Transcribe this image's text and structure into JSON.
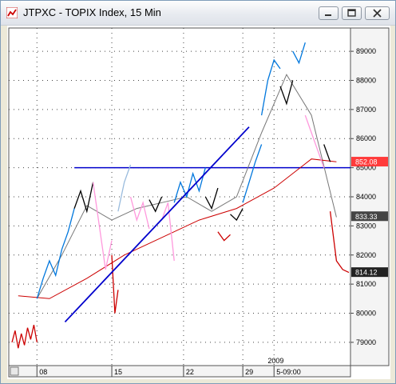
{
  "window": {
    "title": "JTPXC - TOPIX Index, 15 Min",
    "icon": "chart-app-icon",
    "controls": [
      "minimize-icon",
      "maximize-icon",
      "close-icon"
    ]
  },
  "chart_data": {
    "type": "line",
    "title": "JTPXC - TOPIX Index, 15 Min",
    "xlabel": "",
    "ylabel": "",
    "x_ticks": [
      "08",
      "15",
      "22",
      "29",
      "5-09:00"
    ],
    "x_year_label": "2009",
    "y_ticks": [
      790,
      800,
      810,
      820,
      830,
      840,
      850,
      860,
      870,
      880,
      890
    ],
    "ylim": [
      782,
      898
    ],
    "price_labels": [
      {
        "value": 852.08,
        "text": "852.08",
        "color": "#ff3b3b"
      },
      {
        "value": 833.33,
        "text": "833.33",
        "color": "#444444"
      },
      {
        "value": 814.12,
        "text": "814.12",
        "color": "#222222"
      }
    ],
    "horizontal_line": {
      "value": 850,
      "color": "#0000cc"
    },
    "trendline": {
      "from": [
        8.5,
        797
      ],
      "to": [
        38,
        864
      ],
      "color": "#0000cc"
    },
    "grid": "dotted",
    "series": [
      {
        "color": "#cc0000",
        "x": [
          0,
          0.5,
          1,
          1.5,
          2,
          2.5,
          3,
          3.5,
          4
        ],
        "values": [
          790,
          794,
          788,
          793,
          789,
          795,
          791,
          796,
          790
        ]
      },
      {
        "color": "#0077dd",
        "x": [
          4,
          5,
          6,
          7,
          8,
          9,
          10
        ],
        "values": [
          805,
          812,
          818,
          813,
          822,
          828,
          836
        ]
      },
      {
        "color": "#000000",
        "x": [
          10,
          11,
          12,
          13
        ],
        "values": [
          836,
          842,
          835,
          845
        ]
      },
      {
        "color": "#ff99dd",
        "x": [
          13,
          14,
          15,
          16
        ],
        "values": [
          845,
          830,
          815,
          825
        ]
      },
      {
        "color": "#cc0000",
        "x": [
          16,
          16.5,
          17
        ],
        "values": [
          820,
          800,
          808
        ]
      },
      {
        "color": "#99bbdd",
        "x": [
          17,
          18,
          19
        ],
        "values": [
          835,
          845,
          851
        ]
      },
      {
        "color": "#ff99dd",
        "x": [
          19,
          20,
          21,
          22
        ],
        "values": [
          840,
          832,
          838,
          829
        ]
      },
      {
        "color": "#000000",
        "x": [
          22,
          23,
          24
        ],
        "values": [
          839,
          835,
          840
        ]
      },
      {
        "color": "#ff99dd",
        "x": [
          24,
          25,
          26
        ],
        "values": [
          832,
          838,
          818
        ]
      },
      {
        "color": "#0077dd",
        "x": [
          26,
          27,
          28,
          29,
          30,
          31
        ],
        "values": [
          838,
          845,
          840,
          848,
          842,
          850
        ]
      },
      {
        "color": "#000000",
        "x": [
          31,
          32,
          33
        ],
        "values": [
          840,
          836,
          843
        ]
      },
      {
        "color": "#cc0000",
        "x": [
          33,
          34,
          35
        ],
        "values": [
          828,
          825,
          827
        ]
      },
      {
        "color": "#000000",
        "x": [
          35,
          36,
          37
        ],
        "values": [
          834,
          832,
          836
        ]
      },
      {
        "color": "#0077dd",
        "x": [
          37,
          38,
          39,
          40
        ],
        "values": [
          838,
          845,
          852,
          858
        ]
      },
      {
        "color": "#0077dd",
        "x": [
          40,
          41,
          42,
          43
        ],
        "values": [
          868,
          880,
          887,
          884
        ]
      },
      {
        "color": "#000000",
        "x": [
          43,
          44,
          45
        ],
        "values": [
          878,
          872,
          880
        ]
      },
      {
        "color": "#0077dd",
        "x": [
          45,
          46,
          47
        ],
        "values": [
          890,
          886,
          893
        ]
      },
      {
        "color": "#ff99dd",
        "x": [
          47,
          48,
          49,
          50
        ],
        "values": [
          868,
          862,
          856,
          850
        ]
      },
      {
        "color": "#000000",
        "x": [
          50,
          51
        ],
        "values": [
          858,
          852
        ]
      },
      {
        "color": "#cc0000",
        "x": [
          51,
          52,
          53,
          54
        ],
        "values": [
          835,
          818,
          815,
          814
        ]
      }
    ],
    "moving_averages": [
      {
        "color": "#777777",
        "x": [
          4,
          8,
          12,
          16,
          20,
          24,
          28,
          32,
          36,
          40,
          44,
          48,
          52
        ],
        "values": [
          805,
          820,
          837,
          832,
          836,
          838,
          840,
          835,
          840,
          862,
          882,
          868,
          833
        ]
      },
      {
        "color": "#cc0000",
        "x": [
          1,
          6,
          12,
          18,
          24,
          30,
          36,
          42,
          48,
          52
        ],
        "values": [
          806,
          805,
          812,
          820,
          826,
          832,
          836,
          843,
          853,
          852
        ]
      }
    ],
    "xlim": [
      0,
      54
    ]
  }
}
